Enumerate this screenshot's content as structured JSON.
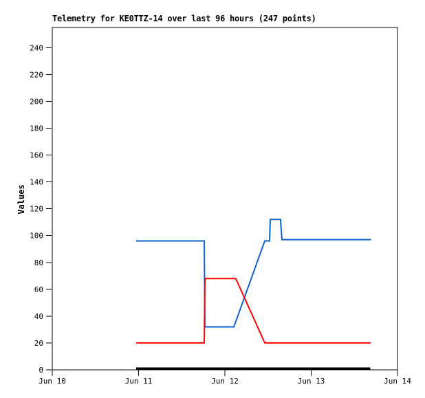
{
  "chart_data": {
    "type": "line",
    "title": "Telemetry for KE0TTZ-14 over last 96 hours (247 points)",
    "xlabel": "",
    "ylabel": "Values",
    "ylim": [
      0,
      255
    ],
    "xlim": [
      0,
      4
    ],
    "grid": false,
    "legend": "none",
    "background_color": "#FFFFFF",
    "axis_color": "#000000",
    "text_color": "#000000",
    "y_ticks": [
      0,
      20,
      40,
      60,
      80,
      100,
      120,
      140,
      160,
      180,
      200,
      220,
      240
    ],
    "x_ticks": [
      {
        "pos": 0,
        "label": "Jun 10"
      },
      {
        "pos": 1,
        "label": "Jun 11"
      },
      {
        "pos": 2,
        "label": "Jun 12"
      },
      {
        "pos": 3,
        "label": "Jun 13"
      },
      {
        "pos": 4,
        "label": "Jun 14"
      }
    ],
    "x_unit": "days since Jun 10",
    "series": [
      {
        "name": "blue-series",
        "color": "#0D63C8",
        "width": 2,
        "points": [
          [
            0.972,
            96
          ],
          [
            1.761,
            96
          ],
          [
            1.769,
            32
          ],
          [
            2.104,
            32
          ],
          [
            2.462,
            96
          ],
          [
            2.518,
            96
          ],
          [
            2.526,
            112
          ],
          [
            2.645,
            112
          ],
          [
            2.661,
            97
          ],
          [
            3.693,
            97
          ]
        ]
      },
      {
        "name": "red-series",
        "color": "#FF0000",
        "width": 2,
        "points": [
          [
            0.972,
            20
          ],
          [
            1.761,
            20
          ],
          [
            1.769,
            68
          ],
          [
            2.127,
            68
          ],
          [
            2.462,
            20
          ],
          [
            3.689,
            20
          ]
        ]
      },
      {
        "name": "black-series",
        "color": "#000000",
        "width": 3,
        "points": [
          [
            0.972,
            1
          ],
          [
            3.685,
            1
          ]
        ]
      }
    ]
  }
}
